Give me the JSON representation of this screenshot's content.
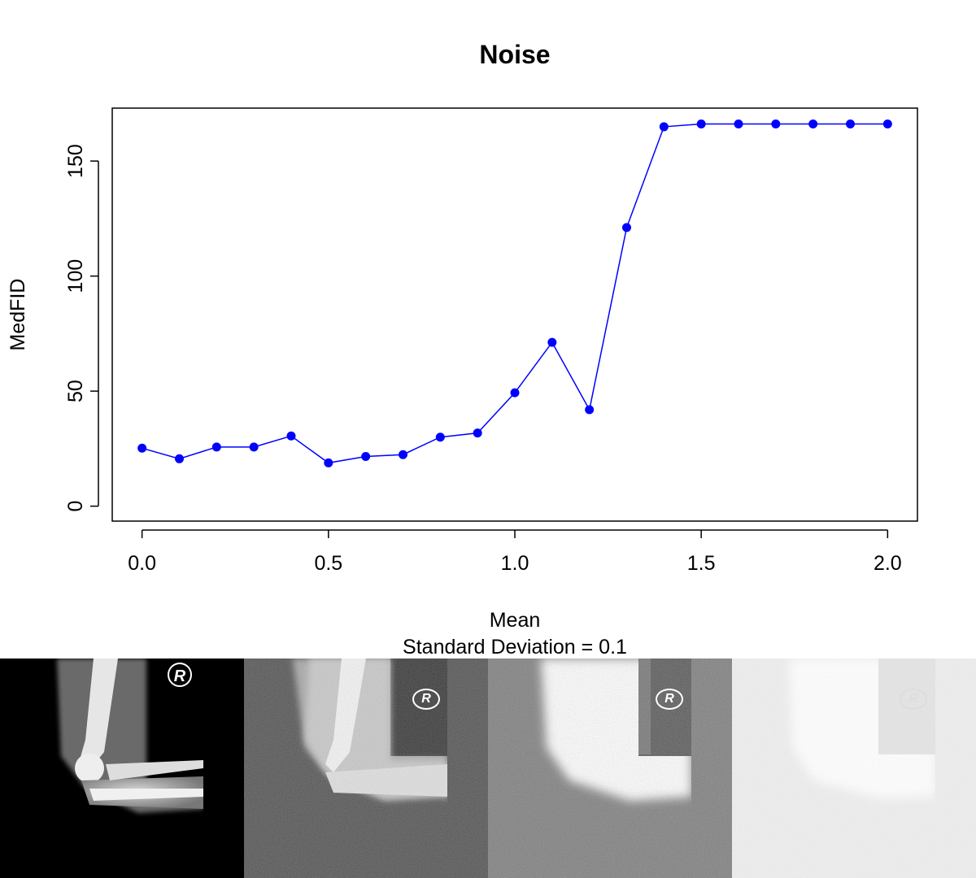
{
  "chart_data": {
    "type": "line",
    "title": "Noise",
    "xlabel": "Mean",
    "subtitle": "Standard Deviation = 0.1",
    "ylabel": "MedFID",
    "xlim": [
      -0.08,
      2.08
    ],
    "ylim": [
      -6.5,
      173
    ],
    "x_ticks": [
      0.0,
      0.5,
      1.0,
      1.5,
      2.0
    ],
    "x_tick_labels": [
      "0.0",
      "0.5",
      "1.0",
      "1.5",
      "2.0"
    ],
    "y_ticks": [
      0,
      50,
      100,
      150
    ],
    "y_tick_labels": [
      "0",
      "50",
      "100",
      "150"
    ],
    "grid": false,
    "legend": "none",
    "series": [
      {
        "color": "#0000ff",
        "marker": "filled-circle",
        "x": [
          0.0,
          0.1,
          0.2,
          0.3,
          0.4,
          0.5,
          0.6,
          0.7,
          0.8,
          0.9,
          1.0,
          1.1,
          1.2,
          1.3,
          1.4,
          1.5,
          1.6,
          1.7,
          1.8,
          1.9,
          2.0
        ],
        "y": [
          25.2,
          20.6,
          25.7,
          25.7,
          30.5,
          18.8,
          21.6,
          22.4,
          30.0,
          31.8,
          49.3,
          71.2,
          41.9,
          121.1,
          164.9,
          166.1,
          166.1,
          166.1,
          166.1,
          166.1,
          166.1
        ]
      }
    ]
  },
  "images": [
    {
      "name": "x-ray-original",
      "caption": ""
    },
    {
      "name": "x-ray-low-noise",
      "caption": ""
    },
    {
      "name": "x-ray-medium-noise",
      "caption": ""
    },
    {
      "name": "x-ray-high-noise",
      "caption": ""
    }
  ],
  "watermark_letter": "R"
}
